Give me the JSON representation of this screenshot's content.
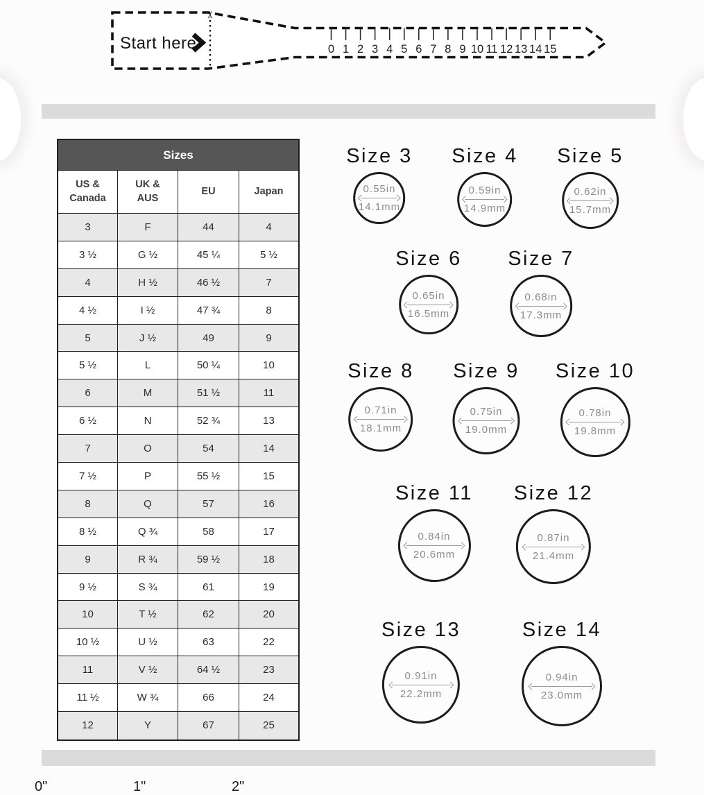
{
  "sizer_strip": {
    "start_label": "Start here",
    "scissors_icon": "✂",
    "ruler_numbers": [
      "0",
      "1",
      "2",
      "3",
      "4",
      "5",
      "6",
      "7",
      "8",
      "9",
      "10",
      "11",
      "12",
      "13",
      "14",
      "15"
    ]
  },
  "table": {
    "title": "Sizes",
    "columns": [
      "US &\nCanada",
      "UK &\nAUS",
      "EU",
      "Japan"
    ],
    "rows": [
      [
        "3",
        "F",
        "44",
        "4"
      ],
      [
        "3 ½",
        "G ½",
        "45 ¼",
        "5 ½"
      ],
      [
        "4",
        "H ½",
        "46 ½",
        "7"
      ],
      [
        "4 ½",
        "I ½",
        "47 ¾",
        "8"
      ],
      [
        "5",
        "J ½",
        "49",
        "9"
      ],
      [
        "5 ½",
        "L",
        "50 ¼",
        "10"
      ],
      [
        "6",
        "M",
        "51 ½",
        "11"
      ],
      [
        "6 ½",
        "N",
        "52 ¾",
        "13"
      ],
      [
        "7",
        "O",
        "54",
        "14"
      ],
      [
        "7 ½",
        "P",
        "55 ½",
        "15"
      ],
      [
        "8",
        "Q",
        "57",
        "16"
      ],
      [
        "8 ½",
        "Q ¾",
        "58",
        "17"
      ],
      [
        "9",
        "R ¾",
        "59 ½",
        "18"
      ],
      [
        "9 ½",
        "S ¾",
        "61",
        "19"
      ],
      [
        "10",
        "T ½",
        "62",
        "20"
      ],
      [
        "10 ½",
        "U ½",
        "63",
        "22"
      ],
      [
        "11",
        "V ½",
        "64 ½",
        "23"
      ],
      [
        "11 ½",
        "W ¾",
        "66",
        "24"
      ],
      [
        "12",
        "Y",
        "67",
        "25"
      ]
    ]
  },
  "ring_sizes": [
    {
      "label": "Size 3",
      "diameter_in": "0.55in",
      "diameter_mm": "14.1mm",
      "mm_value": 14.1
    },
    {
      "label": "Size 4",
      "diameter_in": "0.59in",
      "diameter_mm": "14.9mm",
      "mm_value": 14.9
    },
    {
      "label": "Size 5",
      "diameter_in": "0.62in",
      "diameter_mm": "15.7mm",
      "mm_value": 15.7
    },
    {
      "label": "Size 6",
      "diameter_in": "0.65in",
      "diameter_mm": "16.5mm",
      "mm_value": 16.5
    },
    {
      "label": "Size 7",
      "diameter_in": "0.68in",
      "diameter_mm": "17.3mm",
      "mm_value": 17.3
    },
    {
      "label": "Size 8",
      "diameter_in": "0.71in",
      "diameter_mm": "18.1mm",
      "mm_value": 18.1
    },
    {
      "label": "Size 9",
      "diameter_in": "0.75in",
      "diameter_mm": "19.0mm",
      "mm_value": 19.0
    },
    {
      "label": "Size 10",
      "diameter_in": "0.78in",
      "diameter_mm": "19.8mm",
      "mm_value": 19.8
    },
    {
      "label": "Size 11",
      "diameter_in": "0.84in",
      "diameter_mm": "20.6mm",
      "mm_value": 20.6
    },
    {
      "label": "Size 12",
      "diameter_in": "0.87in",
      "diameter_mm": "21.4mm",
      "mm_value": 21.4
    },
    {
      "label": "Size 13",
      "diameter_in": "0.91in",
      "diameter_mm": "22.2mm",
      "mm_value": 22.2
    },
    {
      "label": "Size 14",
      "diameter_in": "0.94in",
      "diameter_mm": "23.0mm",
      "mm_value": 23.0
    }
  ],
  "bottom_ruler": {
    "labels": [
      "0\"",
      "1\"",
      "2\""
    ]
  },
  "colors": {
    "table_header_bg": "#565656",
    "table_header_text": "#ffffff",
    "row_shade": "#e9e8e8",
    "divider_bar": "#dbdbdb",
    "circle_stroke": "#1c1c1c",
    "measure_text": "#8c8c8c",
    "ink": "#1a1a1a"
  }
}
